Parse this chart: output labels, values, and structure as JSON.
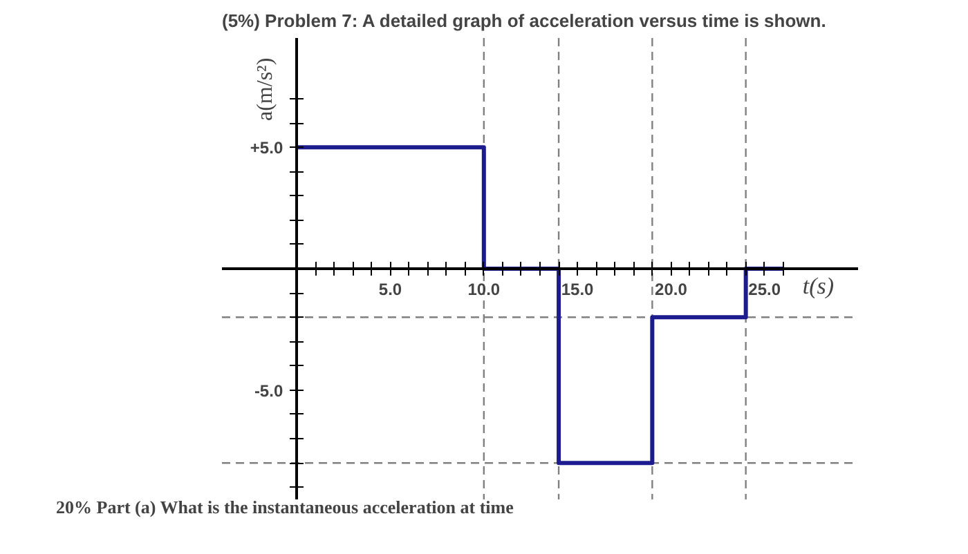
{
  "chart_data": {
    "type": "step",
    "title": "(5%) Problem 7: A detailed graph of acceleration versus time is shown.",
    "xlabel": "t(s)",
    "ylabel": "a(m/s²)",
    "x": [
      0,
      10,
      14,
      19,
      24,
      26
    ],
    "series": [
      {
        "color": "#1c1c8e",
        "values": [
          5,
          0,
          -8,
          -2,
          0,
          0
        ]
      }
    ],
    "xlim": [
      -4,
      30
    ],
    "ylim": [
      -9.5,
      9.5
    ],
    "xticks": [
      {
        "value": 1,
        "label": null
      },
      {
        "value": 2,
        "label": null
      },
      {
        "value": 3,
        "label": null
      },
      {
        "value": 4,
        "label": null
      },
      {
        "value": 5,
        "label": "5.0"
      },
      {
        "value": 6,
        "label": null
      },
      {
        "value": 7,
        "label": null
      },
      {
        "value": 8,
        "label": null
      },
      {
        "value": 9,
        "label": null
      },
      {
        "value": 10,
        "label": "10.0"
      },
      {
        "value": 11,
        "label": null
      },
      {
        "value": 12,
        "label": null
      },
      {
        "value": 13,
        "label": null
      },
      {
        "value": 14,
        "label": null
      },
      {
        "value": 15,
        "label": "15.0"
      },
      {
        "value": 16,
        "label": null
      },
      {
        "value": 17,
        "label": null
      },
      {
        "value": 18,
        "label": null
      },
      {
        "value": 19,
        "label": null
      },
      {
        "value": 20,
        "label": "20.0"
      },
      {
        "value": 21,
        "label": null
      },
      {
        "value": 22,
        "label": null
      },
      {
        "value": 23,
        "label": null
      },
      {
        "value": 24,
        "label": null
      },
      {
        "value": 25,
        "label": "25.0"
      },
      {
        "value": 26,
        "label": null
      }
    ],
    "yticks": [
      {
        "value": -9,
        "label": null
      },
      {
        "value": -8,
        "label": null
      },
      {
        "value": -7,
        "label": null
      },
      {
        "value": -6,
        "label": null
      },
      {
        "value": -5,
        "label": "-5.0"
      },
      {
        "value": -4,
        "label": null
      },
      {
        "value": -3,
        "label": null
      },
      {
        "value": -2,
        "label": null
      },
      {
        "value": -1,
        "label": null
      },
      {
        "value": 1,
        "label": null
      },
      {
        "value": 2,
        "label": null
      },
      {
        "value": 3,
        "label": null
      },
      {
        "value": 4,
        "label": null
      },
      {
        "value": 5,
        "label": "+5.0"
      },
      {
        "value": 6,
        "label": null
      },
      {
        "value": 7,
        "label": null
      }
    ],
    "ref_lines": [
      {
        "axis": "x",
        "value": 10,
        "color": "#808080",
        "line_style": "dashed"
      },
      {
        "axis": "x",
        "value": 14,
        "color": "#808080",
        "line_style": "dashed"
      },
      {
        "axis": "x",
        "value": 19,
        "color": "#808080",
        "line_style": "dashed"
      },
      {
        "axis": "x",
        "value": 24,
        "color": "#808080",
        "line_style": "dashed"
      },
      {
        "axis": "y",
        "value": -2,
        "color": "#808080",
        "line_style": "dashed"
      },
      {
        "axis": "y",
        "value": -8,
        "color": "#808080",
        "line_style": "dashed"
      }
    ],
    "annotations": [
      "20% Part (a) What is the instantaneous acceleration at time"
    ],
    "grid": false
  }
}
